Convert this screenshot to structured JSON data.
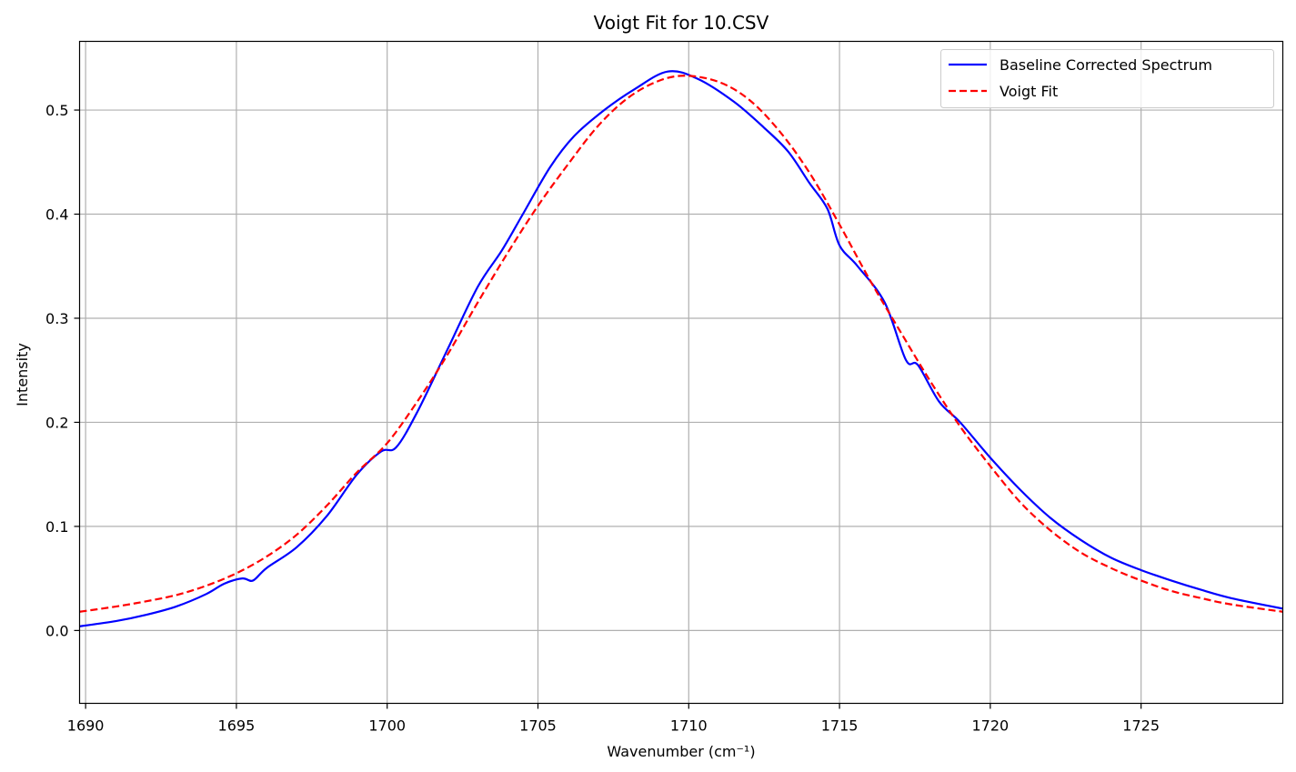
{
  "chart_data": {
    "type": "line",
    "title": "Voigt Fit for 10.CSV",
    "xlabel": "Wavenumber (cm⁻¹)",
    "ylabel": "Intensity",
    "xlim": [
      1689.8,
      1729.7
    ],
    "ylim": [
      -0.07,
      0.566
    ],
    "xticks": [
      1690,
      1695,
      1700,
      1705,
      1710,
      1715,
      1720,
      1725
    ],
    "xtick_labels": [
      "1690",
      "1695",
      "1700",
      "1705",
      "1710",
      "1715",
      "1720",
      "1725"
    ],
    "yticks": [
      0.0,
      0.1,
      0.2,
      0.3,
      0.4,
      0.5
    ],
    "ytick_labels": [
      "0.0",
      "0.1",
      "0.2",
      "0.3",
      "0.4",
      "0.5"
    ],
    "grid": true,
    "legend_position": "top-right",
    "series": [
      {
        "name": "Baseline Corrected Spectrum",
        "color": "#0000ff",
        "style": "solid",
        "x": [
          1689.8,
          1691,
          1692,
          1693,
          1694,
          1694.6,
          1695.2,
          1695.55,
          1696,
          1697,
          1698,
          1699,
          1699.8,
          1700.3,
          1701,
          1702,
          1703,
          1703.8,
          1704.5,
          1705.4,
          1706.2,
          1707.2,
          1708.2,
          1709.3,
          1710.3,
          1711.5,
          1712.5,
          1713.3,
          1714,
          1714.6,
          1715,
          1715.6,
          1716.5,
          1717.2,
          1717.6,
          1718.3,
          1719,
          1720,
          1721,
          1722,
          1723,
          1724,
          1725,
          1726,
          1727,
          1728,
          1729.7
        ],
        "y": [
          0.004,
          0.009,
          0.015,
          0.023,
          0.035,
          0.045,
          0.05,
          0.048,
          0.06,
          0.08,
          0.11,
          0.15,
          0.172,
          0.176,
          0.21,
          0.27,
          0.33,
          0.365,
          0.4,
          0.445,
          0.475,
          0.5,
          0.52,
          0.537,
          0.53,
          0.508,
          0.483,
          0.46,
          0.43,
          0.405,
          0.37,
          0.35,
          0.315,
          0.26,
          0.255,
          0.22,
          0.2,
          0.166,
          0.135,
          0.108,
          0.087,
          0.07,
          0.058,
          0.048,
          0.039,
          0.031,
          0.021
        ]
      },
      {
        "name": "Voigt Fit",
        "color": "#ff0000",
        "style": "dashed",
        "x": [
          1689.8,
          1691,
          1692,
          1693,
          1694,
          1695,
          1696,
          1697,
          1698,
          1699,
          1700,
          1701,
          1702,
          1703,
          1704,
          1705,
          1706,
          1707,
          1708,
          1709,
          1709.9,
          1711,
          1712,
          1713,
          1714,
          1715,
          1716,
          1717,
          1718,
          1719,
          1720,
          1721,
          1722,
          1723,
          1724,
          1725,
          1726,
          1727,
          1728,
          1729.7
        ],
        "y": [
          0.018,
          0.023,
          0.028,
          0.034,
          0.043,
          0.055,
          0.071,
          0.092,
          0.12,
          0.152,
          0.18,
          0.22,
          0.265,
          0.315,
          0.363,
          0.408,
          0.448,
          0.485,
          0.512,
          0.528,
          0.533,
          0.527,
          0.51,
          0.48,
          0.44,
          0.39,
          0.337,
          0.288,
          0.24,
          0.196,
          0.158,
          0.123,
          0.096,
          0.075,
          0.06,
          0.048,
          0.038,
          0.031,
          0.025,
          0.018
        ]
      }
    ]
  }
}
